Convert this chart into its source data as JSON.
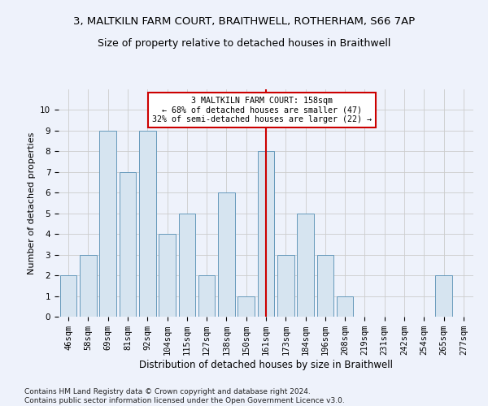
{
  "title1": "3, MALTKILN FARM COURT, BRAITHWELL, ROTHERHAM, S66 7AP",
  "title2": "Size of property relative to detached houses in Braithwell",
  "xlabel": "Distribution of detached houses by size in Braithwell",
  "ylabel": "Number of detached properties",
  "footer1": "Contains HM Land Registry data © Crown copyright and database right 2024.",
  "footer2": "Contains public sector information licensed under the Open Government Licence v3.0.",
  "bin_labels": [
    "46sqm",
    "58sqm",
    "69sqm",
    "81sqm",
    "92sqm",
    "104sqm",
    "115sqm",
    "127sqm",
    "138sqm",
    "150sqm",
    "161sqm",
    "173sqm",
    "184sqm",
    "196sqm",
    "208sqm",
    "219sqm",
    "231sqm",
    "242sqm",
    "254sqm",
    "265sqm",
    "277sqm"
  ],
  "bar_values": [
    2,
    3,
    9,
    7,
    9,
    4,
    5,
    2,
    6,
    1,
    8,
    3,
    5,
    3,
    1,
    0,
    0,
    0,
    0,
    2,
    0
  ],
  "bar_color": "#d6e4f0",
  "bar_edge_color": "#6699bb",
  "grid_color": "#cccccc",
  "vline_x_index": 10,
  "vline_color": "#cc0000",
  "annotation_text": "3 MALTKILN FARM COURT: 158sqm\n← 68% of detached houses are smaller (47)\n32% of semi-detached houses are larger (22) →",
  "annotation_box_color": "#ffffff",
  "annotation_box_edge": "#cc0000",
  "ylim": [
    0,
    11
  ],
  "yticks": [
    0,
    1,
    2,
    3,
    4,
    5,
    6,
    7,
    8,
    9,
    10,
    11
  ],
  "background_color": "#eef2fb",
  "title1_fontsize": 9.5,
  "title2_fontsize": 9,
  "xlabel_fontsize": 8.5,
  "ylabel_fontsize": 8,
  "tick_fontsize": 7.5,
  "footer_fontsize": 6.5
}
